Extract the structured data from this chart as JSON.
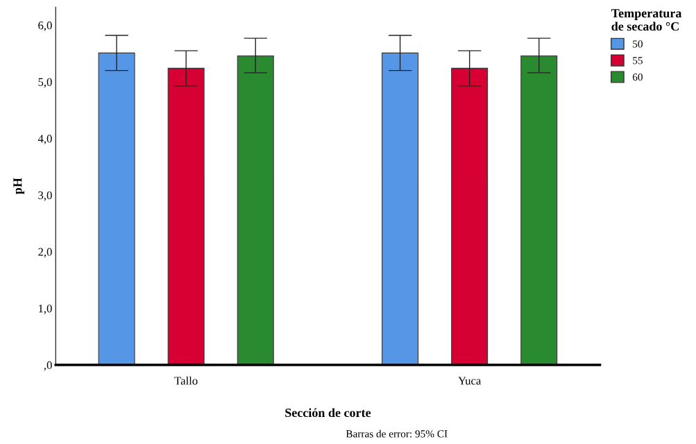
{
  "chart_data": {
    "type": "bar",
    "xlabel": "Sección de corte",
    "ylabel": "pH",
    "legend_title": "Temperatura\nde secado °C",
    "categories": [
      "Tallo",
      "Yuca"
    ],
    "series": [
      {
        "name": "50",
        "color": "#5596e6",
        "values": [
          5.51,
          5.51
        ],
        "errors": [
          [
            5.2,
            5.82
          ],
          [
            5.2,
            5.82
          ]
        ]
      },
      {
        "name": "55",
        "color": "#d70033",
        "values": [
          5.24,
          5.24
        ],
        "errors": [
          [
            4.93,
            5.55
          ],
          [
            4.93,
            5.55
          ]
        ]
      },
      {
        "name": "60",
        "color": "#298a2f",
        "values": [
          5.46,
          5.46
        ],
        "errors": [
          [
            5.16,
            5.77
          ],
          [
            5.16,
            5.77
          ]
        ]
      }
    ],
    "ylim": [
      0,
      6.32
    ],
    "yticks": [
      {
        "value": 0,
        "label": ",0"
      },
      {
        "value": 1,
        "label": "1,0"
      },
      {
        "value": 2,
        "label": "2,0"
      },
      {
        "value": 3,
        "label": "3,0"
      },
      {
        "value": 4,
        "label": "4,0"
      },
      {
        "value": 5,
        "label": "5,0"
      },
      {
        "value": 6,
        "label": "6,0"
      }
    ],
    "grid": false,
    "legend": "top right",
    "annotations": [
      "Barras de error: 95% CI"
    ]
  }
}
